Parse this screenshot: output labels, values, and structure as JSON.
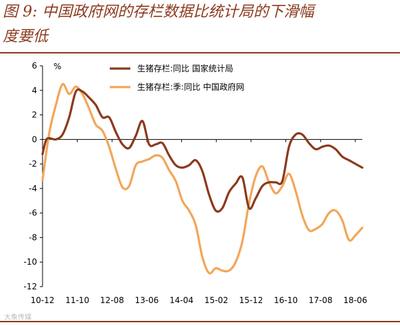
{
  "title_line1": "图 9:  中国政府网的存栏数据比统计局的下滑幅",
  "title_line2": "度要低",
  "watermark": "大象传媒",
  "colors": {
    "series1": "#8B3A1E",
    "series2": "#F2A65A",
    "title": "#8B3A1E"
  },
  "chart_data": {
    "type": "line",
    "unit": "%",
    "ylim": [
      -12,
      6
    ],
    "yticks": [
      6,
      4,
      2,
      0,
      -2,
      -4,
      -6,
      -8,
      -10,
      -12
    ],
    "xticks": [
      "10-12",
      "11-10",
      "12-08",
      "13-06",
      "14-04",
      "15-02",
      "15-12",
      "16-10",
      "17-08",
      "18-06"
    ],
    "legend_position": "top-center",
    "grid": false,
    "series": [
      {
        "name": "生猪存栏:同比  国家统计局",
        "color": "#8B3A1E",
        "points": [
          [
            0,
            -1.2
          ],
          [
            0.5,
            -0.1
          ],
          [
            1,
            0.1
          ],
          [
            2,
            0
          ],
          [
            3,
            0.4
          ],
          [
            4,
            1.8
          ],
          [
            5,
            3.9
          ],
          [
            6,
            3.9
          ],
          [
            7,
            3.4
          ],
          [
            8,
            2.8
          ],
          [
            9,
            1.8
          ],
          [
            10,
            1.8
          ],
          [
            11,
            0.6
          ],
          [
            12,
            -0.4
          ],
          [
            13,
            -0.7
          ],
          [
            14,
            0.3
          ],
          [
            15,
            1.5
          ],
          [
            16,
            -0.4
          ],
          [
            17,
            -0.4
          ],
          [
            18,
            -0.3
          ],
          [
            19,
            -1.3
          ],
          [
            20,
            -2.1
          ],
          [
            21,
            -2.3
          ],
          [
            22,
            -2.1
          ],
          [
            23,
            -1.7
          ],
          [
            24,
            -2.6
          ],
          [
            25,
            -4.5
          ],
          [
            26,
            -5.8
          ],
          [
            27,
            -5.6
          ],
          [
            28,
            -4.3
          ],
          [
            29,
            -3.6
          ],
          [
            30,
            -3.1
          ],
          [
            31,
            -5.6
          ],
          [
            32,
            -4.8
          ],
          [
            33,
            -3.8
          ],
          [
            34,
            -3.5
          ],
          [
            35,
            -3.5
          ],
          [
            36,
            -3.4
          ],
          [
            37,
            -0.6
          ],
          [
            38,
            0.4
          ],
          [
            39,
            0.4
          ],
          [
            40,
            -0.3
          ],
          [
            41,
            -0.8
          ],
          [
            42,
            -0.6
          ],
          [
            43,
            -0.5
          ],
          [
            44,
            -0.8
          ],
          [
            45,
            -1.4
          ],
          [
            46,
            -1.7
          ],
          [
            47,
            -2.0
          ],
          [
            48,
            -2.3
          ]
        ]
      },
      {
        "name": "生猪存栏:季:同比  中国政府网",
        "color": "#F2A65A",
        "points": [
          [
            0,
            -3.3
          ],
          [
            1,
            0.5
          ],
          [
            2,
            2.8
          ],
          [
            3,
            4.5
          ],
          [
            4,
            3.7
          ],
          [
            5,
            4.3
          ],
          [
            6,
            3.7
          ],
          [
            7,
            2.5
          ],
          [
            8,
            1.2
          ],
          [
            9,
            0.7
          ],
          [
            10,
            -0.6
          ],
          [
            11,
            -2.4
          ],
          [
            12,
            -3.9
          ],
          [
            13,
            -3.8
          ],
          [
            14,
            -2.1
          ],
          [
            15,
            -1.8
          ],
          [
            16,
            -1.6
          ],
          [
            17,
            -1.3
          ],
          [
            18,
            -1.5
          ],
          [
            19,
            -2.5
          ],
          [
            20,
            -3.4
          ],
          [
            21,
            -5.0
          ],
          [
            22,
            -5.8
          ],
          [
            23,
            -7.0
          ],
          [
            24,
            -9.6
          ],
          [
            25,
            -10.9
          ],
          [
            26,
            -10.5
          ],
          [
            27,
            -10.7
          ],
          [
            28,
            -10.7
          ],
          [
            29,
            -10.0
          ],
          [
            30,
            -8.3
          ],
          [
            31,
            -5.2
          ],
          [
            32,
            -3.0
          ],
          [
            33,
            -2.2
          ],
          [
            34,
            -3.5
          ],
          [
            35,
            -4.4
          ],
          [
            36,
            -3.8
          ],
          [
            37,
            -2.8
          ],
          [
            38,
            -4.2
          ],
          [
            39,
            -6.2
          ],
          [
            40,
            -7.4
          ],
          [
            41,
            -7.3
          ],
          [
            42,
            -6.9
          ],
          [
            43,
            -6.0
          ],
          [
            44,
            -5.8
          ],
          [
            45,
            -6.6
          ],
          [
            46,
            -8.2
          ],
          [
            47,
            -7.8
          ],
          [
            48,
            -7.2
          ]
        ]
      }
    ]
  }
}
